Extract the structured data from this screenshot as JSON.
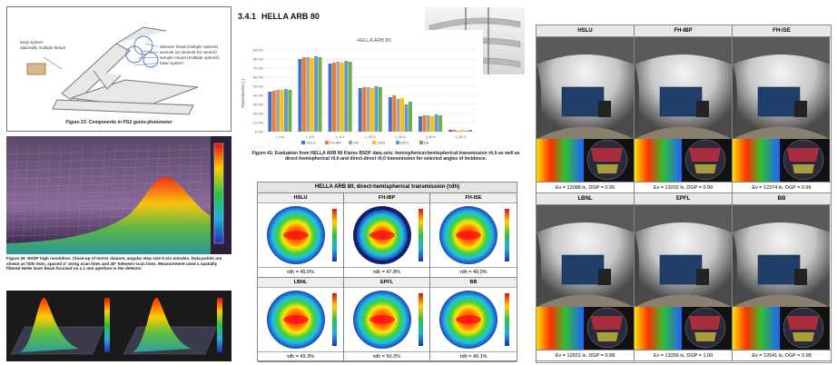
{
  "figure_23": {
    "caption": "Figure 23: Components in PG2 gonio-photometer",
    "labels": [
      "lamp system",
      "optionally multiple lamps",
      "detector head (multiple options)",
      "aureole (or sensors for sensor)",
      "sample mount (multiple options)",
      "base system"
    ]
  },
  "figure_26": {
    "caption": "Figure 26: BSDF high resolution. Close-up of mirror dataset, angular step size 5 arc-minutes. Data-points are shown as little dots, spaced 4° along scan lines and 45° between scan lines. Measurement used a spatially filtered HeNe laser beam focused on a 1 mm aperture in the detector"
  },
  "section": {
    "number": "3.4.1",
    "title": "HELLA ARB 80"
  },
  "bar_chart": {
    "type": "bar",
    "title": "HELLA ARB 80",
    "y_label": "Transmission [-]",
    "categories": [
      "τ_h,h",
      "τ_0,h",
      "τ_0,0",
      "τ_30,h",
      "τ_30,0",
      "τ_60,h",
      "τ_60,0"
    ],
    "series": [
      {
        "name": "HSLU",
        "color": "#4472c4",
        "values": [
          44,
          80,
          75,
          48,
          38,
          17,
          2
        ]
      },
      {
        "name": "FH-IBP",
        "color": "#ed7d31",
        "values": [
          45,
          82,
          76,
          49,
          40,
          18,
          2
        ]
      },
      {
        "name": "ISE",
        "color": "#a5a5a5",
        "values": [
          46,
          82,
          77,
          49,
          36,
          18,
          1
        ]
      },
      {
        "name": "LBNL",
        "color": "#ffc000",
        "values": [
          46,
          81,
          76,
          48,
          37,
          17,
          2
        ]
      },
      {
        "name": "EPFL",
        "color": "#5b9bd5",
        "values": [
          47,
          83,
          78,
          50,
          30,
          19,
          1
        ]
      },
      {
        "name": "BB",
        "color": "#70ad47",
        "values": [
          46,
          82,
          77,
          49,
          33,
          18,
          2
        ]
      }
    ],
    "ylim": [
      0,
      90
    ],
    "yticks": [
      {
        "value": 0,
        "label": "0.0%"
      },
      {
        "value": 10,
        "label": "10.0%"
      },
      {
        "value": 20,
        "label": "20.0%"
      },
      {
        "value": 30,
        "label": "30.0%"
      },
      {
        "value": 40,
        "label": "40.0%"
      },
      {
        "value": 50,
        "label": "50.0%"
      },
      {
        "value": 60,
        "label": "60.0%"
      },
      {
        "value": 70,
        "label": "70.0%"
      },
      {
        "value": 80,
        "label": "80.0%"
      },
      {
        "value": 90,
        "label": "90.0%"
      }
    ],
    "grid": true
  },
  "figure_41": {
    "caption": "Figure 41: Evaluation from HELLA ARB 80 Klares BSDF data sets: hemispherical-hemispherical transmission τh,h as well as direct-hemispherical τ0,h and direct-direct τ0,0 transmission for selected angles of incidence."
  },
  "transmission_table": {
    "title": "HELLA ARB 80, direct-hemispherical transmission (τdh)",
    "cells": [
      {
        "label": "HSLU",
        "value": "τdh = 45.5%"
      },
      {
        "label": "FH-IBP",
        "value": "τdh = 47.8%"
      },
      {
        "label": "FH-ISE",
        "value": "τdh = 49.0%"
      },
      {
        "label": "LBNL",
        "value": "τdh = 49.3%"
      },
      {
        "label": "EPFL",
        "value": "τdh = 50.3%"
      },
      {
        "label": "BB",
        "value": "τdh = 49.1%"
      }
    ]
  },
  "glare_table": {
    "cells": [
      {
        "label": "HSLU",
        "result": "Ev = 12088 lx, DGP = 0.95"
      },
      {
        "label": "FH-IBP",
        "result": "Ev = 13202 lx, DGP = 0.99"
      },
      {
        "label": "FH-ISE",
        "result": "Ev = 12374 lx, DGP = 0.96"
      },
      {
        "label": "LBNL",
        "result": "Ev = 12651 lx, DGP = 0.98"
      },
      {
        "label": "EPFL",
        "result": "Ev = 13356 lx, DGP = 1.00"
      },
      {
        "label": "BB",
        "result": "Ev = 12641 lx, DGP = 0.98"
      }
    ]
  }
}
